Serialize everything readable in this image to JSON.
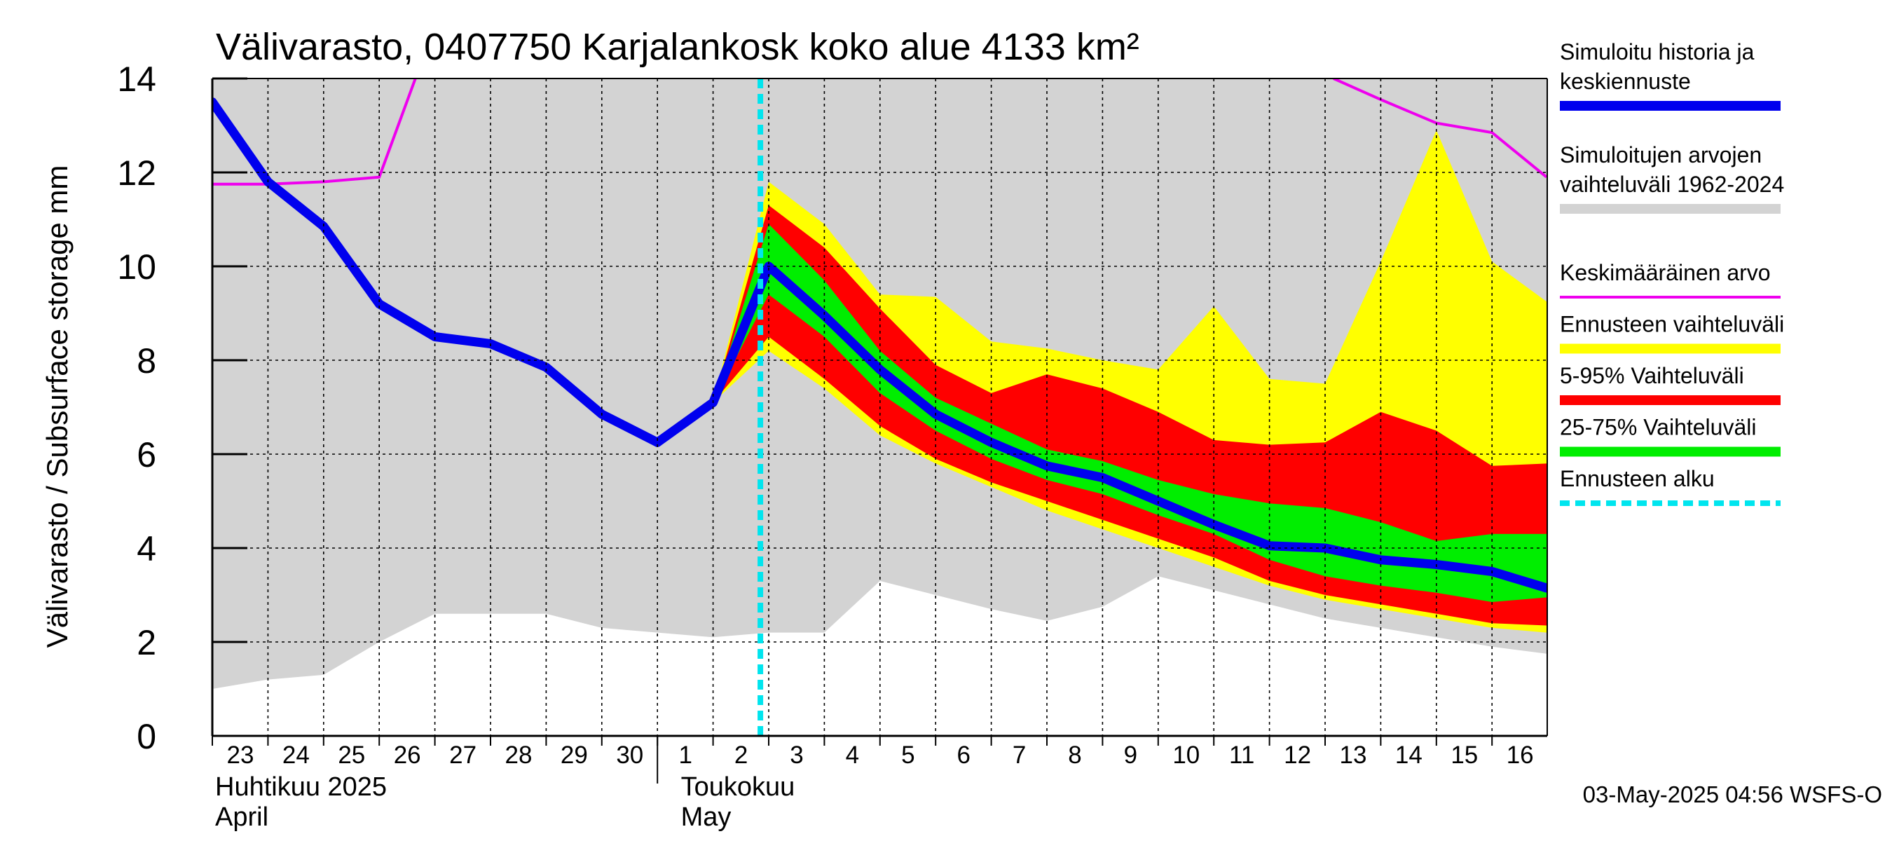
{
  "chart_data": {
    "type": "area",
    "title": "Välivarasto, 0407750 Karjalankosk koko alue 4133 km²",
    "ylabel": "Välivarasto / Subsurface storage  mm",
    "ylim": [
      0,
      14
    ],
    "yticks": [
      0,
      2,
      4,
      6,
      8,
      10,
      12,
      14
    ],
    "grid": true,
    "legend_position": "right",
    "x_day_labels": [
      "23",
      "24",
      "25",
      "26",
      "27",
      "28",
      "29",
      "30",
      "1",
      "2",
      "3",
      "4",
      "5",
      "6",
      "7",
      "8",
      "9",
      "10",
      "11",
      "12",
      "13",
      "14",
      "15",
      "16"
    ],
    "month_labels": [
      {
        "line1": "Huhtikuu  2025",
        "line2": "April"
      },
      {
        "line1": "Toukokuu",
        "line2": "May"
      }
    ],
    "forecast_start_day": "3",
    "timestamp": "03-May-2025 04:56 WSFS-O",
    "colors": {
      "history_range": "#d3d3d3",
      "simulated": "#0000ee",
      "mean": "#ee00ee",
      "forecast_range": "#ffff00",
      "p5_95": "#ff0000",
      "p25_75": "#00ee00",
      "forecast_start": "#00e5ee"
    },
    "series": [
      {
        "name": "Simuloitujen arvojen vaihteluväli 1962-2024",
        "x": [
          0,
          1,
          2,
          3,
          4,
          5,
          6,
          7,
          8,
          9,
          10,
          11,
          12,
          13,
          14,
          15,
          16,
          17,
          18,
          19,
          20,
          21,
          22,
          23,
          23.98
        ],
        "lower": [
          1.0,
          1.2,
          1.3,
          2.0,
          2.6,
          2.6,
          2.6,
          2.3,
          2.2,
          2.1,
          2.2,
          2.2,
          3.3,
          3.0,
          2.7,
          2.45,
          2.75,
          3.4,
          3.1,
          2.8,
          2.5,
          2.3,
          2.1,
          1.9,
          1.75
        ],
        "upper": [
          14,
          14,
          14,
          14,
          14,
          14,
          14,
          14,
          14,
          14,
          14,
          14,
          14,
          14,
          14,
          14,
          14,
          14,
          14,
          14,
          14,
          14,
          14,
          14,
          14
        ]
      },
      {
        "name": "Ennusteen vaihteluväli",
        "x": [
          9,
          10,
          11,
          12,
          13,
          14,
          15,
          16,
          17,
          18,
          19,
          20,
          21,
          22,
          23,
          23.98
        ],
        "lower": [
          7.1,
          8.2,
          7.4,
          6.4,
          5.8,
          5.3,
          4.8,
          4.4,
          4.0,
          3.6,
          3.2,
          2.9,
          2.7,
          2.5,
          2.3,
          2.2
        ],
        "upper": [
          7.1,
          11.8,
          10.9,
          9.4,
          9.35,
          8.4,
          8.25,
          8.0,
          7.8,
          9.15,
          7.6,
          7.5,
          10.1,
          12.9,
          10.1,
          9.25
        ]
      },
      {
        "name": "5-95% Vaihteluväli",
        "x": [
          9,
          10,
          11,
          12,
          13,
          14,
          15,
          16,
          17,
          18,
          19,
          20,
          21,
          22,
          23,
          23.98
        ],
        "lower": [
          7.1,
          8.5,
          7.6,
          6.6,
          5.9,
          5.4,
          5.0,
          4.6,
          4.2,
          3.8,
          3.3,
          3.0,
          2.8,
          2.6,
          2.4,
          2.35
        ],
        "upper": [
          7.1,
          11.3,
          10.4,
          9.1,
          7.9,
          7.3,
          7.7,
          7.4,
          6.9,
          6.3,
          6.2,
          6.25,
          6.9,
          6.5,
          5.75,
          5.8
        ]
      },
      {
        "name": "25-75% Vaihteluväli",
        "x": [
          9,
          10,
          11,
          12,
          13,
          14,
          15,
          16,
          17,
          18,
          19,
          20,
          21,
          22,
          23,
          23.98
        ],
        "lower": [
          7.1,
          9.4,
          8.5,
          7.3,
          6.5,
          5.9,
          5.45,
          5.15,
          4.7,
          4.3,
          3.75,
          3.4,
          3.2,
          3.05,
          2.85,
          2.95
        ],
        "upper": [
          7.1,
          10.9,
          9.7,
          8.2,
          7.2,
          6.65,
          6.1,
          5.85,
          5.45,
          5.15,
          4.95,
          4.85,
          4.55,
          4.15,
          4.3,
          4.3
        ]
      },
      {
        "name": "Keskimääräinen arvo",
        "x": [
          0,
          1,
          2,
          3,
          3.65
        ],
        "values": [
          11.75,
          11.75,
          11.8,
          11.9,
          14.0
        ]
      },
      {
        "name": "Keskimääräinen arvo",
        "x": [
          20.15,
          21,
          22,
          23,
          23.98
        ],
        "values": [
          14.0,
          13.55,
          13.05,
          12.85,
          11.9
        ]
      },
      {
        "name": "Simuloitu historia ja keskiennuste",
        "x": [
          0,
          1,
          2,
          3,
          4,
          5,
          6,
          7,
          8,
          9,
          10,
          11,
          12,
          13,
          14,
          15,
          16,
          17,
          18,
          19,
          20,
          21,
          22,
          23,
          23.98
        ],
        "values": [
          13.5,
          11.8,
          10.85,
          9.2,
          8.5,
          8.35,
          7.85,
          6.85,
          6.25,
          7.1,
          10.0,
          8.95,
          7.8,
          6.85,
          6.25,
          5.75,
          5.5,
          5.0,
          4.5,
          4.05,
          4.0,
          3.75,
          3.65,
          3.5,
          3.15
        ]
      }
    ],
    "legend": [
      {
        "label_lines": [
          "Simuloitu historia ja",
          "keskiennuste"
        ],
        "style": "thick",
        "color": "#0000ee"
      },
      {
        "label_lines": [
          "Simuloitujen arvojen",
          "vaihteluväli 1962-2024"
        ],
        "style": "thick",
        "color": "#d3d3d3"
      },
      {
        "label_lines": [
          "Keskimääräinen arvo"
        ],
        "style": "thin",
        "color": "#ee00ee"
      },
      {
        "label_lines": [
          "Ennusteen vaihteluväli"
        ],
        "style": "thick",
        "color": "#ffff00"
      },
      {
        "label_lines": [
          "5-95% Vaihteluväli"
        ],
        "style": "thick",
        "color": "#ff0000"
      },
      {
        "label_lines": [
          "25-75% Vaihteluväli"
        ],
        "style": "thick",
        "color": "#00ee00"
      },
      {
        "label_lines": [
          "Ennusteen alku"
        ],
        "style": "dashed",
        "color": "#00e5ee"
      }
    ]
  }
}
